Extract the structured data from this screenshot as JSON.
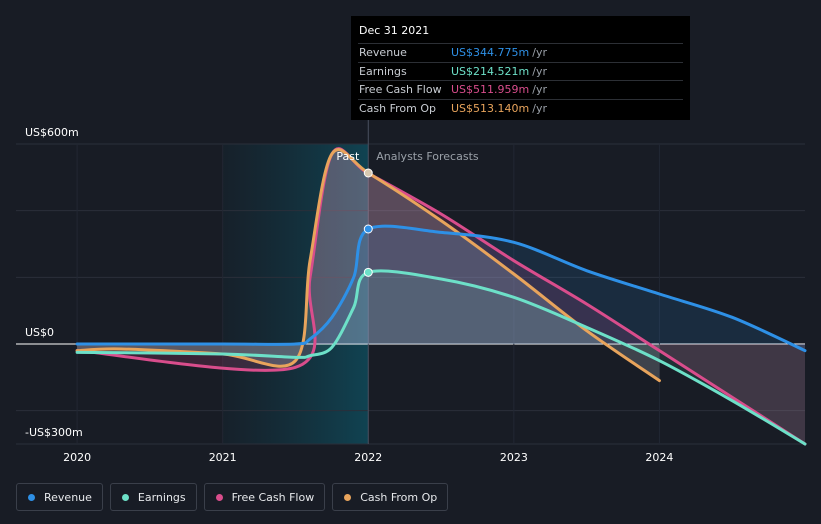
{
  "chart_data": {
    "type": "line",
    "y_axis_labels": [
      "US$600m",
      "US$0",
      "-US$300m"
    ],
    "ylim": [
      -300,
      600
    ],
    "x_ticks": [
      "2020",
      "2021",
      "2022",
      "2023",
      "2024"
    ],
    "xlim": [
      2019.8,
      2025.0
    ],
    "divider_x": 2022.0,
    "past_label": "Past",
    "forecast_label": "Analysts Forecasts",
    "grid": true,
    "legend_position": "bottom-left",
    "series": [
      {
        "name": "Revenue",
        "color": "#2e90e6",
        "x": [
          2020.0,
          2021.0,
          2021.5,
          2021.6,
          2021.75,
          2021.9,
          2022.0,
          2022.5,
          2023.0,
          2023.5,
          2024.0,
          2024.5,
          2025.0
        ],
        "values": [
          0,
          0,
          0,
          15,
          80,
          200,
          345,
          335,
          305,
          220,
          150,
          80,
          -20
        ]
      },
      {
        "name": "Earnings",
        "color": "#6de0c8",
        "x": [
          2020.0,
          2021.0,
          2021.5,
          2021.6,
          2021.75,
          2021.9,
          2022.0,
          2022.5,
          2023.0,
          2023.5,
          2024.0,
          2024.5,
          2025.0
        ],
        "values": [
          -25,
          -30,
          -40,
          -35,
          -10,
          110,
          215,
          195,
          140,
          50,
          -50,
          -170,
          -300
        ]
      },
      {
        "name": "Free Cash Flow",
        "color": "#d94d8c",
        "x": [
          2020.0,
          2021.5,
          2021.6,
          2021.75,
          2022.0,
          2022.5,
          2023.0,
          2023.5,
          2024.0,
          2025.0
        ],
        "values": [
          -20,
          -70,
          200,
          570,
          512,
          390,
          250,
          120,
          -20,
          -300
        ]
      },
      {
        "name": "Cash From Op",
        "color": "#e8a45c",
        "x": [
          2020.0,
          2020.3,
          2021.0,
          2021.5,
          2021.6,
          2021.75,
          2022.0,
          2022.5,
          2023.0,
          2023.5,
          2024.0
        ],
        "values": [
          -20,
          -15,
          -30,
          -50,
          250,
          570,
          513,
          370,
          210,
          40,
          -110
        ]
      }
    ]
  },
  "tooltip": {
    "date": "Dec 31 2021",
    "rows": [
      {
        "name": "Revenue",
        "value": "US$344.775m",
        "unit": "/yr",
        "color": "#2e90e6"
      },
      {
        "name": "Earnings",
        "value": "US$214.521m",
        "unit": "/yr",
        "color": "#6de0c8"
      },
      {
        "name": "Free Cash Flow",
        "value": "US$511.959m",
        "unit": "/yr",
        "color": "#d94d8c"
      },
      {
        "name": "Cash From Op",
        "value": "US$513.140m",
        "unit": "/yr",
        "color": "#e8a45c"
      }
    ]
  },
  "legend": [
    {
      "label": "Revenue",
      "color": "#2e90e6"
    },
    {
      "label": "Earnings",
      "color": "#6de0c8"
    },
    {
      "label": "Free Cash Flow",
      "color": "#d94d8c"
    },
    {
      "label": "Cash From Op",
      "color": "#e8a45c"
    }
  ]
}
